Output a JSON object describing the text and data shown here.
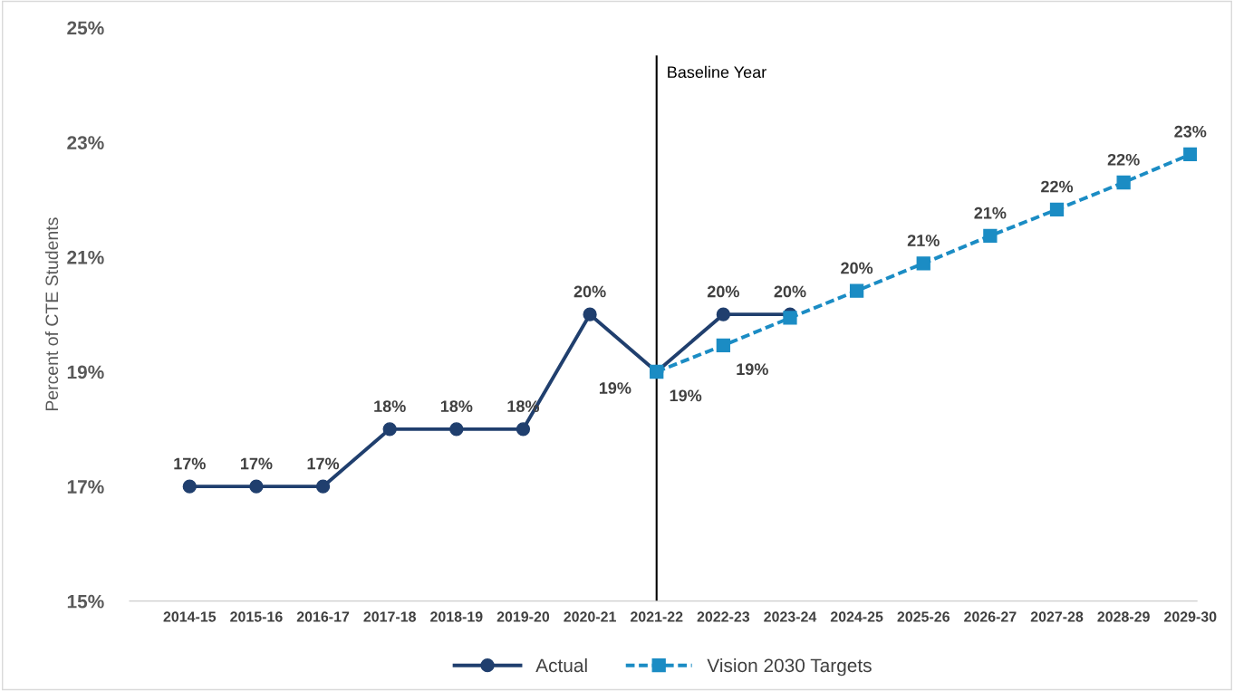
{
  "chart_data": {
    "type": "line",
    "categories": [
      "2014-15",
      "2015-16",
      "2016-17",
      "2017-18",
      "2018-19",
      "2019-20",
      "2020-21",
      "2021-22",
      "2022-23",
      "2023-24",
      "2024-25",
      "2025-26",
      "2026-27",
      "2027-28",
      "2028-29",
      "2029-30"
    ],
    "ylabel": "Percent of CTE Students",
    "ylim": [
      15,
      25
    ],
    "yticks": [
      {
        "value": 15,
        "label": "15%"
      },
      {
        "value": 17,
        "label": "17%"
      },
      {
        "value": 19,
        "label": "19%"
      },
      {
        "value": 21,
        "label": "21%"
      },
      {
        "value": 23,
        "label": "23%"
      },
      {
        "value": 25,
        "label": "25%"
      }
    ],
    "series": [
      {
        "name": "Actual",
        "color": "#203f6e",
        "marker": "circle",
        "line_style": "solid",
        "values": [
          17,
          17,
          17,
          18,
          18,
          18,
          20,
          19,
          20,
          20,
          null,
          null,
          null,
          null,
          null,
          null
        ],
        "value_labels": [
          "17%",
          "17%",
          "17%",
          "18%",
          "18%",
          "18%",
          "20%",
          "19%",
          "20%",
          "20%",
          null,
          null,
          null,
          null,
          null,
          null
        ]
      },
      {
        "name": "Vision 2030 Targets",
        "color": "#1b8cc4",
        "marker": "square",
        "line_style": "dashed",
        "values": [
          null,
          null,
          null,
          null,
          null,
          null,
          null,
          19,
          19.46,
          19.94,
          20.41,
          20.89,
          21.37,
          21.83,
          22.3,
          22.79
        ],
        "value_labels": [
          null,
          null,
          null,
          null,
          null,
          null,
          null,
          "19%",
          "19%",
          null,
          "20%",
          "21%",
          "21%",
          "22%",
          "22%",
          "23%"
        ]
      }
    ],
    "ref_lines": [
      {
        "axis": "x",
        "value": "2021-22",
        "label": "Baseline Year",
        "color": "#000000"
      }
    ],
    "grid": false,
    "legend": "bottom"
  }
}
